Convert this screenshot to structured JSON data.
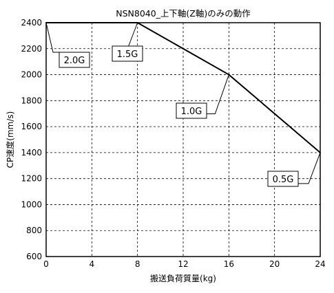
{
  "chart_data": {
    "type": "line",
    "title": "NSN8040_上下軸(Z軸)のみの動作",
    "xlabel": "搬送負荷質量(kg)",
    "ylabel": "CP速度(mm/s)",
    "xlim": [
      0,
      24
    ],
    "ylim": [
      600,
      2400
    ],
    "xticks": [
      0,
      4,
      8,
      12,
      16,
      20,
      24
    ],
    "yticks": [
      600,
      800,
      1000,
      1200,
      1400,
      1600,
      1800,
      2000,
      2200,
      2400
    ],
    "grid": true,
    "series": [
      {
        "x": [
          0,
          8,
          16,
          24
        ],
        "y": [
          2400,
          2400,
          2000,
          1400
        ]
      }
    ],
    "annotations": [
      {
        "text": "2.0G",
        "x": 0,
        "y": 2400
      },
      {
        "text": "1.5G",
        "x": 8,
        "y": 2400
      },
      {
        "text": "1.0G",
        "x": 16,
        "y": 2000
      },
      {
        "text": "0.5G",
        "x": 24,
        "y": 1400
      }
    ]
  }
}
